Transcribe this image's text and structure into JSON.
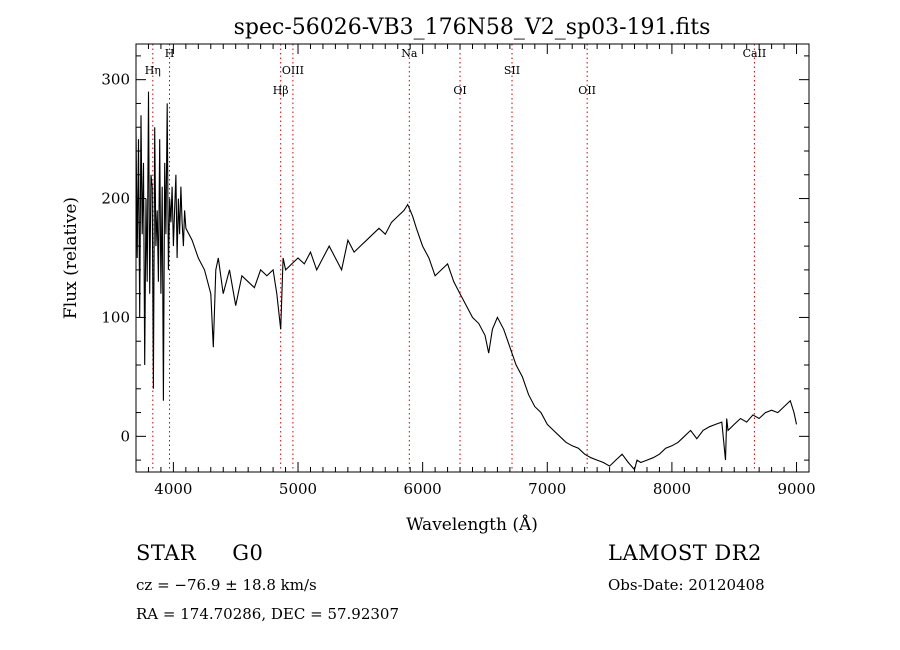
{
  "chart_data": {
    "type": "line",
    "title": "spec-56026-VB3_176N58_V2_sp03-191.fits",
    "xlabel": "Wavelength (Å)",
    "ylabel": "Flux (relative)",
    "xlim": [
      3700,
      9100
    ],
    "ylim": [
      -30,
      330
    ],
    "xticks": [
      4000,
      5000,
      6000,
      7000,
      8000,
      9000
    ],
    "yticks": [
      0,
      100,
      200,
      300
    ],
    "grid": false,
    "line_color": "#000000",
    "marker_color": "#cc0000",
    "lines": [
      {
        "name": "Hη",
        "wavelength": 3835
      },
      {
        "name": "H",
        "wavelength": 3969
      },
      {
        "name": "Hβ",
        "wavelength": 4861
      },
      {
        "name": "OIII",
        "wavelength": 4959
      },
      {
        "name": "Na",
        "wavelength": 5893
      },
      {
        "name": "OI",
        "wavelength": 6300
      },
      {
        "name": "SII",
        "wavelength": 6717
      },
      {
        "name": "OII",
        "wavelength": 7320
      },
      {
        "name": "CaII",
        "wavelength": 8662
      }
    ],
    "series": [
      {
        "x": [
          3700,
          3710,
          3720,
          3730,
          3740,
          3750,
          3760,
          3770,
          3780,
          3790,
          3800,
          3810,
          3820,
          3830,
          3840,
          3850,
          3860,
          3870,
          3880,
          3890,
          3900,
          3910,
          3920,
          3930,
          3940,
          3950,
          3960,
          3970,
          3980,
          3990,
          4000,
          4010,
          4020,
          4030,
          4040,
          4050,
          4060,
          4070,
          4080,
          4090,
          4100,
          4150,
          4200,
          4250,
          4300,
          4320,
          4340,
          4360,
          4400,
          4450,
          4500,
          4550,
          4600,
          4650,
          4700,
          4750,
          4800,
          4830,
          4861,
          4880,
          4900,
          4950,
          5000,
          5050,
          5100,
          5150,
          5200,
          5250,
          5300,
          5350,
          5400,
          5450,
          5500,
          5550,
          5600,
          5650,
          5700,
          5750,
          5800,
          5850,
          5880,
          5900,
          5920,
          5950,
          6000,
          6050,
          6100,
          6150,
          6200,
          6250,
          6300,
          6350,
          6400,
          6450,
          6500,
          6530,
          6560,
          6600,
          6650,
          6700,
          6750,
          6800,
          6850,
          6900,
          6950,
          7000,
          7050,
          7100,
          7150,
          7200,
          7250,
          7300,
          7350,
          7400,
          7450,
          7500,
          7550,
          7600,
          7650,
          7700,
          7720,
          7750,
          7800,
          7850,
          7900,
          7950,
          8000,
          8050,
          8100,
          8150,
          8200,
          8250,
          8300,
          8350,
          8400,
          8430,
          8440,
          8450,
          8500,
          8550,
          8600,
          8650,
          8700,
          8750,
          8800,
          8850,
          8900,
          8950,
          8980,
          9000
        ],
        "y": [
          260,
          150,
          250,
          100,
          270,
          170,
          230,
          60,
          200,
          130,
          290,
          120,
          220,
          210,
          40,
          260,
          160,
          190,
          130,
          250,
          120,
          210,
          30,
          230,
          170,
          280,
          140,
          200,
          180,
          210,
          160,
          190,
          220,
          150,
          200,
          170,
          210,
          180,
          160,
          190,
          175,
          165,
          150,
          140,
          120,
          75,
          140,
          150,
          120,
          140,
          110,
          135,
          130,
          125,
          140,
          135,
          140,
          120,
          90,
          150,
          140,
          145,
          150,
          145,
          155,
          140,
          150,
          160,
          150,
          140,
          165,
          155,
          160,
          165,
          170,
          175,
          170,
          180,
          185,
          190,
          195,
          190,
          185,
          175,
          160,
          150,
          135,
          140,
          145,
          130,
          120,
          110,
          100,
          95,
          85,
          70,
          90,
          100,
          90,
          75,
          60,
          50,
          35,
          25,
          20,
          10,
          5,
          0,
          -5,
          -8,
          -10,
          -15,
          -18,
          -20,
          -22,
          -25,
          -20,
          -15,
          -22,
          -28,
          -20,
          -22,
          -20,
          -18,
          -15,
          -10,
          -8,
          -5,
          0,
          5,
          -2,
          5,
          8,
          10,
          12,
          -20,
          15,
          5,
          10,
          15,
          12,
          18,
          15,
          20,
          22,
          20,
          25,
          30,
          20,
          10
        ]
      }
    ]
  },
  "info": {
    "class_label": "STAR",
    "subclass": "G0",
    "survey": "LAMOST DR2",
    "cz": "cz = −76.9 ± 18.8 km/s",
    "obs_date": "Obs-Date: 20120408",
    "coords": "RA = 174.70286, DEC =  57.92307"
  }
}
